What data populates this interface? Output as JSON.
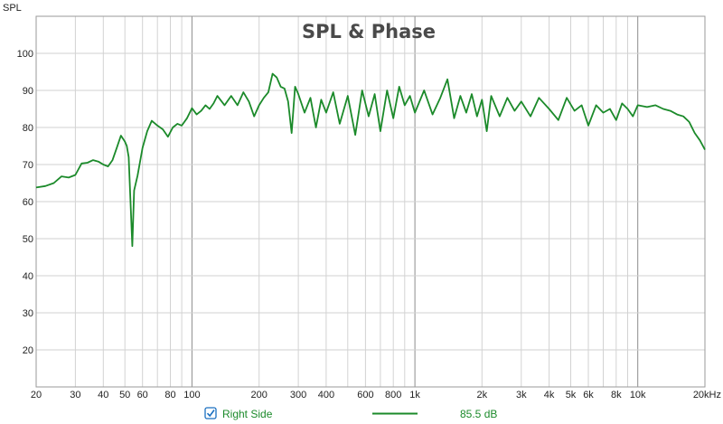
{
  "chart_data": {
    "type": "line",
    "title": "SPL & Phase",
    "ylabel": "SPL",
    "xlabel": "",
    "x_scale": "log",
    "xlim": [
      20,
      20000
    ],
    "ylim": [
      10,
      110
    ],
    "grid": true,
    "x_ticks": [
      {
        "value": 20,
        "label": "20"
      },
      {
        "value": 30,
        "label": "30"
      },
      {
        "value": 40,
        "label": "40"
      },
      {
        "value": 50,
        "label": "50"
      },
      {
        "value": 60,
        "label": "60"
      },
      {
        "value": 80,
        "label": "80"
      },
      {
        "value": 100,
        "label": "100"
      },
      {
        "value": 200,
        "label": "200"
      },
      {
        "value": 300,
        "label": "300"
      },
      {
        "value": 400,
        "label": "400"
      },
      {
        "value": 600,
        "label": "600"
      },
      {
        "value": 800,
        "label": "800"
      },
      {
        "value": 1000,
        "label": "1k"
      },
      {
        "value": 2000,
        "label": "2k"
      },
      {
        "value": 3000,
        "label": "3k"
      },
      {
        "value": 4000,
        "label": "4k"
      },
      {
        "value": 5000,
        "label": "5k"
      },
      {
        "value": 6000,
        "label": "6k"
      },
      {
        "value": 8000,
        "label": "8k"
      },
      {
        "value": 10000,
        "label": "10k"
      },
      {
        "value": 20000,
        "label": "20kHz"
      }
    ],
    "y_ticks": [
      20,
      30,
      40,
      50,
      60,
      70,
      80,
      90,
      100
    ],
    "series": [
      {
        "name": "Right Side",
        "color": "#1b8a2a",
        "legend_value": "85.5 dB",
        "checked": true,
        "x": [
          20,
          22,
          24,
          26,
          28,
          30,
          32,
          34,
          36,
          38,
          40,
          42,
          44,
          46,
          48,
          50,
          51,
          52,
          53,
          54,
          55,
          57,
          60,
          63,
          66,
          70,
          74,
          78,
          82,
          86,
          90,
          95,
          100,
          105,
          110,
          115,
          120,
          125,
          130,
          140,
          150,
          160,
          170,
          180,
          190,
          200,
          210,
          220,
          230,
          240,
          250,
          260,
          270,
          280,
          290,
          300,
          320,
          340,
          360,
          380,
          400,
          430,
          460,
          500,
          540,
          580,
          620,
          660,
          700,
          750,
          800,
          850,
          900,
          950,
          1000,
          1100,
          1200,
          1300,
          1400,
          1500,
          1600,
          1700,
          1800,
          1900,
          2000,
          2100,
          2200,
          2400,
          2600,
          2800,
          3000,
          3300,
          3600,
          4000,
          4400,
          4800,
          5200,
          5600,
          6000,
          6500,
          7000,
          7500,
          8000,
          8500,
          9000,
          9500,
          10000,
          11000,
          12000,
          13000,
          14000,
          15000,
          16000,
          17000,
          18000,
          19000,
          20000
        ],
        "y": [
          63.8,
          64.2,
          65.0,
          66.8,
          66.5,
          67.2,
          70.3,
          70.5,
          71.2,
          70.8,
          70.0,
          69.5,
          71.2,
          74.5,
          77.8,
          76.2,
          75.0,
          72.0,
          60.0,
          48.0,
          63.0,
          67.0,
          74.5,
          79.0,
          81.8,
          80.5,
          79.5,
          77.5,
          80.0,
          81.0,
          80.5,
          82.5,
          85.2,
          83.5,
          84.5,
          86.0,
          85.0,
          86.5,
          88.5,
          86.0,
          88.5,
          86.0,
          89.5,
          87.0,
          83.0,
          86.0,
          88.0,
          89.5,
          94.5,
          93.5,
          91.0,
          90.5,
          87.0,
          78.5,
          91.0,
          89.0,
          84.0,
          88.0,
          80.0,
          87.5,
          84.0,
          89.5,
          81.0,
          88.5,
          78.0,
          90.0,
          83.0,
          89.0,
          79.0,
          90.0,
          82.5,
          91.0,
          86.0,
          88.5,
          84.0,
          90.0,
          83.5,
          88.0,
          93.0,
          82.5,
          88.5,
          84.0,
          89.0,
          83.0,
          87.5,
          79.0,
          88.5,
          83.0,
          88.0,
          84.5,
          87.0,
          83.0,
          88.0,
          85.0,
          82.0,
          88.0,
          84.5,
          86.0,
          80.5,
          86.0,
          84.0,
          85.0,
          82.0,
          86.5,
          85.0,
          83.0,
          86.0,
          85.5,
          86.0,
          85.0,
          84.5,
          83.5,
          83.0,
          81.5,
          78.5,
          76.5,
          74.0
        ]
      }
    ]
  }
}
